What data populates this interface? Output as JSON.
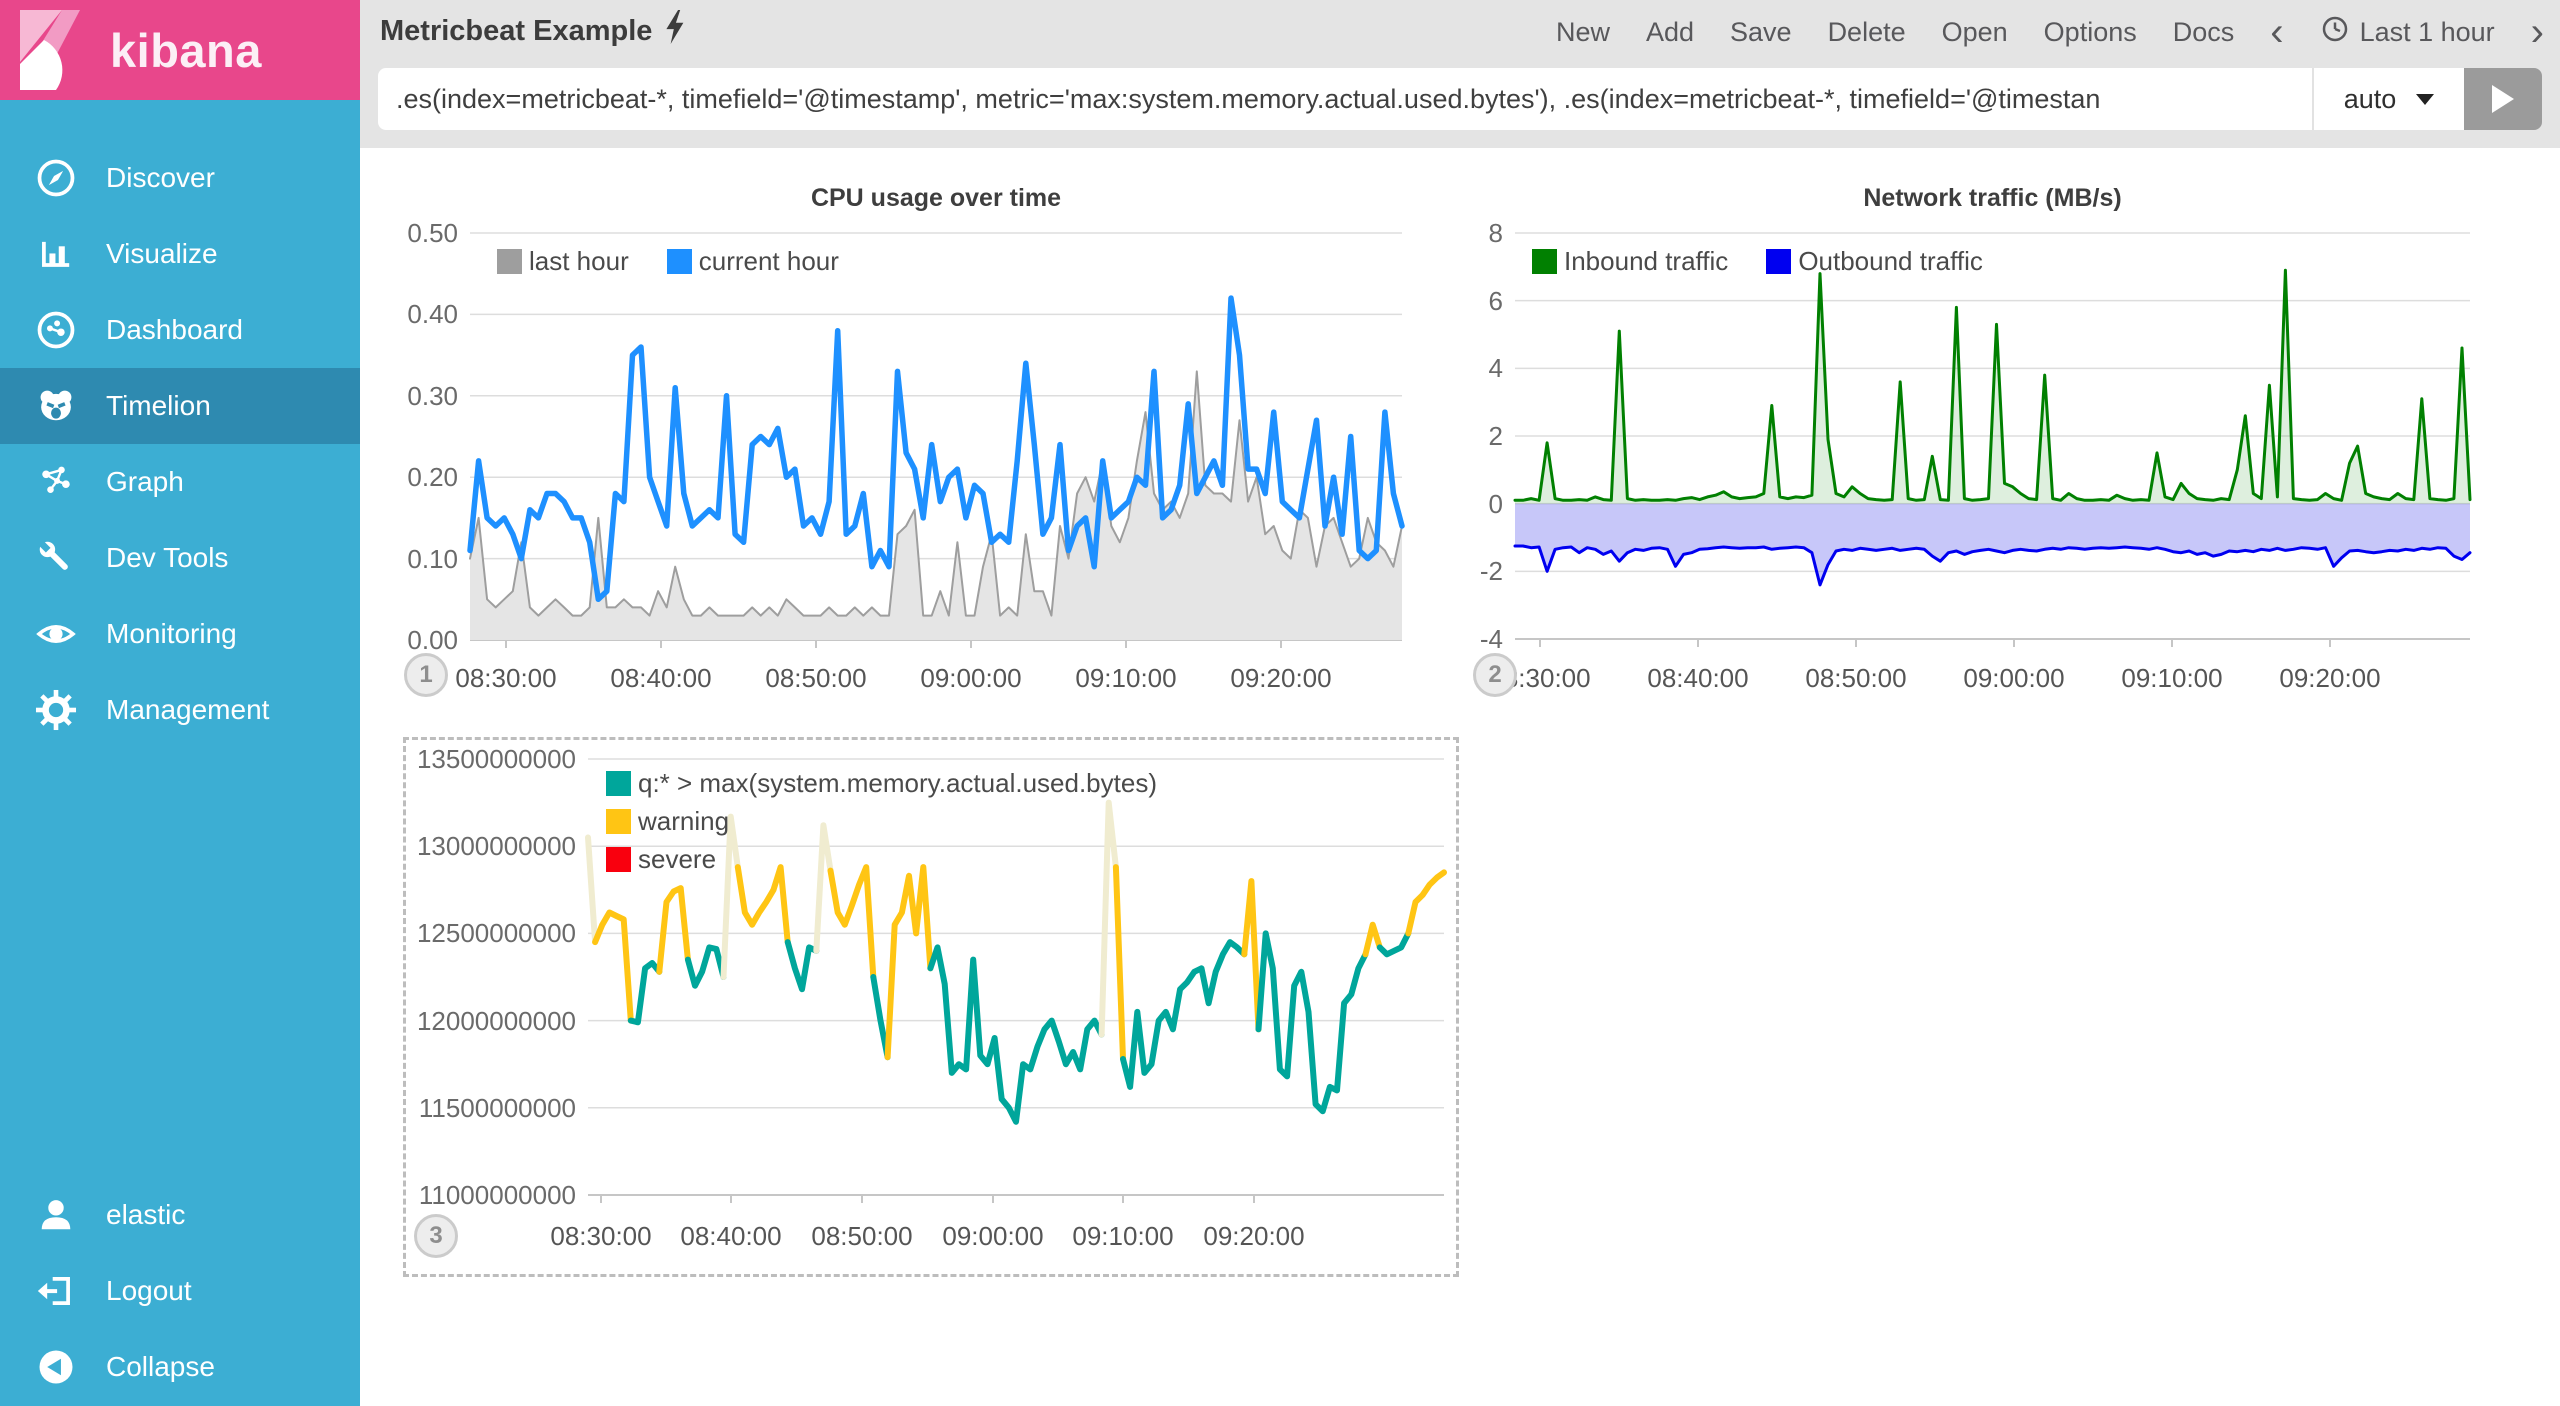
{
  "sidebar": {
    "logo_text": "kibana",
    "items": [
      {
        "label": "Discover",
        "icon": "compass-icon"
      },
      {
        "label": "Visualize",
        "icon": "bar-chart-icon"
      },
      {
        "label": "Dashboard",
        "icon": "dashboard-icon"
      },
      {
        "label": "Timelion",
        "icon": "timelion-bear-icon",
        "selected": true
      },
      {
        "label": "Graph",
        "icon": "graph-network-icon"
      },
      {
        "label": "Dev Tools",
        "icon": "wrench-icon"
      },
      {
        "label": "Monitoring",
        "icon": "eye-icon"
      },
      {
        "label": "Management",
        "icon": "gear-icon"
      }
    ],
    "footer_items": [
      {
        "label": "elastic",
        "icon": "user-icon"
      },
      {
        "label": "Logout",
        "icon": "logout-icon"
      },
      {
        "label": "Collapse",
        "icon": "collapse-icon"
      }
    ],
    "colors": {
      "bg": "#3CAED3",
      "selected_bg": "#2E8AB0",
      "brand_bg": "#E8478B"
    }
  },
  "header": {
    "sheet_title": "Metricbeat Example",
    "menu_items": [
      "New",
      "Add",
      "Save",
      "Delete",
      "Open",
      "Options",
      "Docs"
    ],
    "prev_arrow": "‹",
    "next_arrow": "›",
    "time_picker": "Last 1 hour",
    "query": {
      "value": ".es(index=metricbeat-*, timefield='@timestamp', metric='max:system.memory.actual.used.bytes'), .es(index=metricbeat-*, timefield='@timestan",
      "interval_label": "auto"
    }
  },
  "panels": {
    "badges": [
      "1",
      "2",
      "3"
    ]
  },
  "chart_data": [
    {
      "type": "line",
      "title": "CPU usage over time",
      "x_labels": [
        "08:30:00",
        "08:40:00",
        "08:50:00",
        "09:00:00",
        "09:10:00",
        "09:20:00"
      ],
      "y_labels": [
        "0.50",
        "0.40",
        "0.30",
        "0.20",
        "0.10",
        "0.00"
      ],
      "ylim": [
        0,
        0.5
      ],
      "legend": [
        {
          "name": "last hour",
          "color": "#9E9E9E"
        },
        {
          "name": "current hour",
          "color": "#1E90FF"
        }
      ],
      "series": [
        {
          "name": "last hour",
          "color": "#9E9E9E",
          "fill": "#E5E5E5",
          "baseline": 0,
          "values": [
            0.1,
            0.15,
            0.05,
            0.04,
            0.05,
            0.06,
            0.12,
            0.04,
            0.03,
            0.04,
            0.05,
            0.04,
            0.03,
            0.03,
            0.04,
            0.15,
            0.04,
            0.04,
            0.05,
            0.04,
            0.04,
            0.03,
            0.06,
            0.04,
            0.09,
            0.05,
            0.03,
            0.03,
            0.04,
            0.03,
            0.03,
            0.03,
            0.03,
            0.04,
            0.03,
            0.04,
            0.03,
            0.05,
            0.04,
            0.03,
            0.03,
            0.03,
            0.04,
            0.03,
            0.03,
            0.04,
            0.03,
            0.04,
            0.03,
            0.03,
            0.13,
            0.14,
            0.16,
            0.03,
            0.03,
            0.06,
            0.03,
            0.12,
            0.03,
            0.03,
            0.09,
            0.13,
            0.03,
            0.04,
            0.03,
            0.13,
            0.06,
            0.06,
            0.03,
            0.14,
            0.1,
            0.18,
            0.2,
            0.17,
            0.22,
            0.14,
            0.12,
            0.15,
            0.22,
            0.28,
            0.18,
            0.16,
            0.17,
            0.15,
            0.18,
            0.33,
            0.19,
            0.18,
            0.18,
            0.17,
            0.27,
            0.17,
            0.2,
            0.13,
            0.14,
            0.11,
            0.1,
            0.16,
            0.15,
            0.09,
            0.14,
            0.15,
            0.12,
            0.09,
            0.1,
            0.15,
            0.12,
            0.11,
            0.09,
            0.14
          ]
        },
        {
          "name": "current hour",
          "color": "#1E90FF",
          "values": [
            0.11,
            0.22,
            0.15,
            0.14,
            0.15,
            0.13,
            0.1,
            0.16,
            0.15,
            0.18,
            0.18,
            0.17,
            0.15,
            0.15,
            0.12,
            0.05,
            0.06,
            0.18,
            0.17,
            0.35,
            0.36,
            0.2,
            0.17,
            0.14,
            0.31,
            0.18,
            0.14,
            0.15,
            0.16,
            0.15,
            0.3,
            0.13,
            0.12,
            0.24,
            0.25,
            0.24,
            0.26,
            0.2,
            0.21,
            0.14,
            0.15,
            0.13,
            0.17,
            0.38,
            0.13,
            0.14,
            0.18,
            0.09,
            0.11,
            0.09,
            0.33,
            0.23,
            0.21,
            0.15,
            0.24,
            0.17,
            0.2,
            0.21,
            0.15,
            0.19,
            0.18,
            0.12,
            0.13,
            0.12,
            0.22,
            0.34,
            0.24,
            0.13,
            0.15,
            0.24,
            0.11,
            0.14,
            0.15,
            0.09,
            0.22,
            0.15,
            0.16,
            0.17,
            0.2,
            0.19,
            0.33,
            0.15,
            0.16,
            0.19,
            0.29,
            0.18,
            0.2,
            0.22,
            0.19,
            0.42,
            0.35,
            0.21,
            0.21,
            0.18,
            0.28,
            0.17,
            0.16,
            0.15,
            0.21,
            0.27,
            0.14,
            0.2,
            0.13,
            0.25,
            0.11,
            0.1,
            0.11,
            0.28,
            0.18,
            0.14
          ]
        }
      ]
    },
    {
      "type": "area",
      "title": "Network traffic (MB/s)",
      "x_labels": [
        "08:30:00",
        "08:40:00",
        "08:50:00",
        "09:00:00",
        "09:10:00",
        "09:20:00"
      ],
      "y_labels": [
        "8",
        "6",
        "4",
        "2",
        "0",
        "-2",
        "-4"
      ],
      "ylim": [
        -4,
        8
      ],
      "legend": [
        {
          "name": "Inbound traffic",
          "color": "#018001"
        },
        {
          "name": "Outbound traffic",
          "color": "#0000F0"
        }
      ],
      "series": [
        {
          "name": "Inbound traffic",
          "color": "#018001",
          "fill": "rgba(0,128,0,0.13)",
          "baseline": 0,
          "values": [
            0.1,
            0.1,
            0.15,
            0.1,
            1.8,
            0.15,
            0.1,
            0.1,
            0.12,
            0.1,
            0.2,
            0.12,
            0.1,
            5.1,
            0.15,
            0.1,
            0.12,
            0.1,
            0.1,
            0.12,
            0.1,
            0.15,
            0.18,
            0.12,
            0.2,
            0.25,
            0.35,
            0.2,
            0.15,
            0.18,
            0.2,
            0.3,
            2.9,
            0.2,
            0.15,
            0.2,
            0.18,
            0.25,
            6.8,
            1.9,
            0.3,
            0.2,
            0.5,
            0.3,
            0.15,
            0.12,
            0.1,
            0.12,
            3.6,
            0.15,
            0.1,
            0.12,
            1.4,
            0.12,
            0.1,
            5.8,
            0.15,
            0.1,
            0.12,
            0.15,
            5.3,
            0.6,
            0.5,
            0.3,
            0.15,
            0.12,
            3.8,
            0.15,
            0.1,
            0.3,
            0.15,
            0.1,
            0.1,
            0.12,
            0.1,
            0.25,
            0.15,
            0.1,
            0.12,
            0.1,
            1.5,
            0.2,
            0.12,
            0.6,
            0.3,
            0.15,
            0.12,
            0.1,
            0.15,
            0.12,
            1.0,
            2.6,
            0.3,
            0.15,
            3.5,
            0.2,
            6.9,
            0.15,
            0.12,
            0.1,
            0.12,
            0.3,
            0.15,
            0.1,
            1.2,
            1.7,
            0.3,
            0.2,
            0.15,
            0.12,
            0.3,
            0.15,
            0.12,
            3.1,
            0.15,
            0.12,
            0.1,
            0.15,
            4.6,
            0.12
          ]
        },
        {
          "name": "Outbound traffic",
          "color": "#0000F0",
          "fill": "rgba(70,70,235,0.30)",
          "baseline": 0,
          "values": [
            -1.25,
            -1.25,
            -1.3,
            -1.28,
            -2.0,
            -1.35,
            -1.3,
            -1.28,
            -1.45,
            -1.3,
            -1.35,
            -1.5,
            -1.4,
            -1.7,
            -1.45,
            -1.35,
            -1.38,
            -1.32,
            -1.3,
            -1.35,
            -1.85,
            -1.5,
            -1.45,
            -1.35,
            -1.33,
            -1.3,
            -1.28,
            -1.3,
            -1.32,
            -1.3,
            -1.3,
            -1.28,
            -1.35,
            -1.32,
            -1.3,
            -1.28,
            -1.3,
            -1.45,
            -2.4,
            -1.8,
            -1.4,
            -1.35,
            -1.38,
            -1.32,
            -1.35,
            -1.38,
            -1.35,
            -1.32,
            -1.38,
            -1.35,
            -1.32,
            -1.35,
            -1.55,
            -1.7,
            -1.45,
            -1.4,
            -1.5,
            -1.42,
            -1.38,
            -1.35,
            -1.4,
            -1.45,
            -1.38,
            -1.35,
            -1.38,
            -1.4,
            -1.35,
            -1.32,
            -1.35,
            -1.3,
            -1.32,
            -1.35,
            -1.32,
            -1.3,
            -1.32,
            -1.3,
            -1.28,
            -1.3,
            -1.32,
            -1.35,
            -1.3,
            -1.35,
            -1.42,
            -1.45,
            -1.4,
            -1.5,
            -1.45,
            -1.55,
            -1.5,
            -1.4,
            -1.42,
            -1.38,
            -1.42,
            -1.35,
            -1.38,
            -1.32,
            -1.38,
            -1.35,
            -1.3,
            -1.32,
            -1.35,
            -1.3,
            -1.85,
            -1.6,
            -1.4,
            -1.38,
            -1.42,
            -1.45,
            -1.42,
            -1.38,
            -1.4,
            -1.35,
            -1.38,
            -1.32,
            -1.35,
            -1.3,
            -1.32,
            -1.55,
            -1.65,
            -1.45
          ]
        }
      ]
    },
    {
      "type": "line",
      "title": "",
      "x_labels": [
        "08:30:00",
        "08:40:00",
        "08:50:00",
        "09:00:00",
        "09:10:00",
        "09:20:00"
      ],
      "y_labels": [
        "13500000000",
        "13000000000",
        "12500000000",
        "12000000000",
        "11500000000",
        "11000000000"
      ],
      "ylim": [
        11,
        13.5
      ],
      "value_unit": 1000000000,
      "thresholds": {
        "warning": 12.55,
        "pale": 13.0
      },
      "legend": [
        {
          "name": "q:* > max(system.memory.actual.used.bytes)",
          "color": "#00A69B"
        },
        {
          "name": "warning",
          "color": "#FFC514"
        },
        {
          "name": "severe",
          "color": "#F9000E"
        }
      ],
      "series": [
        {
          "name": "q:* > max(system.memory.actual.used.bytes)",
          "color": "#00A69B",
          "values": [
            13.05,
            12.45,
            12.55,
            12.62,
            12.6,
            12.58,
            12.0,
            11.99,
            12.3,
            12.33,
            12.28,
            12.68,
            12.74,
            12.76,
            12.35,
            12.2,
            12.28,
            12.42,
            12.41,
            12.25,
            13.17,
            12.88,
            12.62,
            12.55,
            12.62,
            12.68,
            12.75,
            12.88,
            12.45,
            12.3,
            12.18,
            12.42,
            12.4,
            13.12,
            12.86,
            12.62,
            12.55,
            12.66,
            12.78,
            12.88,
            12.25,
            12.0,
            11.79,
            12.55,
            12.62,
            12.83,
            12.5,
            12.88,
            12.3,
            12.42,
            12.21,
            11.7,
            11.75,
            11.72,
            12.35,
            11.8,
            11.75,
            11.9,
            11.55,
            11.5,
            11.42,
            11.75,
            11.72,
            11.85,
            11.95,
            12.0,
            11.88,
            11.75,
            11.82,
            11.72,
            11.95,
            12.0,
            11.92,
            13.25,
            12.88,
            11.78,
            11.62,
            12.05,
            11.7,
            11.75,
            12.0,
            12.05,
            11.95,
            12.18,
            12.22,
            12.28,
            12.3,
            12.1,
            12.28,
            12.38,
            12.45,
            12.42,
            12.38,
            12.8,
            11.95,
            12.5,
            12.3,
            11.72,
            11.68,
            12.2,
            12.28,
            12.05,
            11.52,
            11.48,
            11.62,
            11.6,
            12.1,
            12.15,
            12.3,
            12.38,
            12.55,
            12.42,
            12.38,
            12.4,
            12.42,
            12.5,
            12.68,
            12.72,
            12.78,
            12.82,
            12.85
          ]
        }
      ]
    }
  ]
}
